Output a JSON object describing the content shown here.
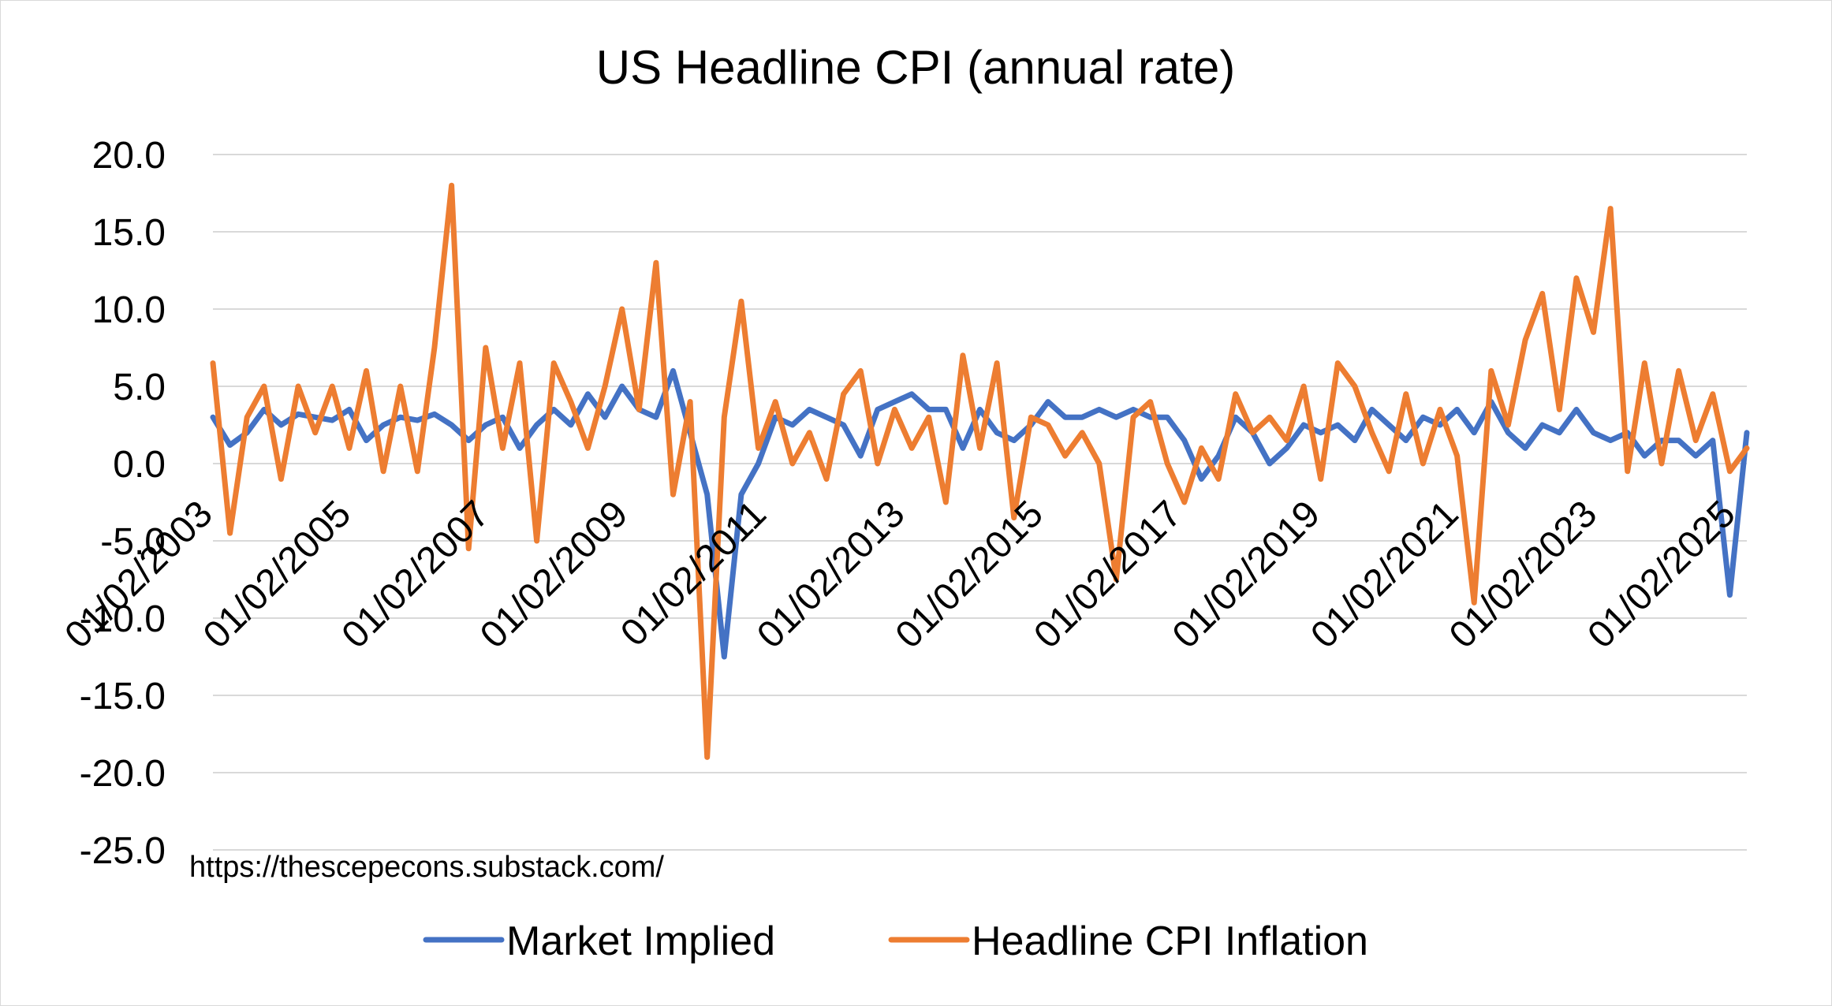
{
  "chart_data": {
    "type": "line",
    "title": "US Headline CPI (annual rate)",
    "xlabel": "",
    "ylabel": "",
    "ylim": [
      -25,
      20
    ],
    "y_ticks": [
      "20.0",
      "15.0",
      "10.0",
      "5.0",
      "0.0",
      "-5.0",
      "-10.0",
      "-15.0",
      "-20.0",
      "-25.0"
    ],
    "x_range": [
      "2003-01",
      "2025-07"
    ],
    "x_ticks": [
      "01/02/2003",
      "01/02/2005",
      "01/02/2007",
      "01/02/2009",
      "01/02/2011",
      "01/02/2013",
      "01/02/2015",
      "01/02/2017",
      "01/02/2019",
      "01/02/2021",
      "01/02/2023",
      "01/02/2025"
    ],
    "grid": true,
    "legend_position": "bottom",
    "annotation": "https://thescepecons.substack.com/",
    "series": [
      {
        "name": "Market Implied",
        "color": "#4472C4",
        "points": [
          [
            "2003-01",
            3.0
          ],
          [
            "2003-04",
            1.2
          ],
          [
            "2003-07",
            2.0
          ],
          [
            "2003-10",
            3.5
          ],
          [
            "2004-01",
            2.5
          ],
          [
            "2004-04",
            3.2
          ],
          [
            "2004-07",
            3.0
          ],
          [
            "2004-10",
            2.8
          ],
          [
            "2005-01",
            3.5
          ],
          [
            "2005-04",
            1.5
          ],
          [
            "2005-07",
            2.5
          ],
          [
            "2005-10",
            3.0
          ],
          [
            "2006-01",
            2.8
          ],
          [
            "2006-04",
            3.2
          ],
          [
            "2006-07",
            2.5
          ],
          [
            "2006-10",
            1.5
          ],
          [
            "2007-01",
            2.5
          ],
          [
            "2007-04",
            3.0
          ],
          [
            "2007-07",
            1.0
          ],
          [
            "2007-10",
            2.5
          ],
          [
            "2008-01",
            3.5
          ],
          [
            "2008-04",
            2.5
          ],
          [
            "2008-07",
            4.5
          ],
          [
            "2008-10",
            3.0
          ],
          [
            "2009-01",
            5.0
          ],
          [
            "2009-04",
            3.5
          ],
          [
            "2009-07",
            3.0
          ],
          [
            "2009-10",
            6.0
          ],
          [
            "2010-01",
            2.0
          ],
          [
            "2010-04",
            -2.0
          ],
          [
            "2010-07",
            -12.5
          ],
          [
            "2010-10",
            -2.0
          ],
          [
            "2011-01",
            0.0
          ],
          [
            "2011-04",
            3.0
          ],
          [
            "2011-07",
            2.5
          ],
          [
            "2011-10",
            3.5
          ],
          [
            "2012-01",
            3.0
          ],
          [
            "2012-04",
            2.5
          ],
          [
            "2012-07",
            0.5
          ],
          [
            "2012-10",
            3.5
          ],
          [
            "2013-01",
            4.0
          ],
          [
            "2013-04",
            4.5
          ],
          [
            "2013-07",
            3.5
          ],
          [
            "2013-10",
            3.5
          ],
          [
            "2014-01",
            1.0
          ],
          [
            "2014-04",
            3.5
          ],
          [
            "2014-07",
            2.0
          ],
          [
            "2014-10",
            1.5
          ],
          [
            "2015-01",
            2.5
          ],
          [
            "2015-04",
            4.0
          ],
          [
            "2015-07",
            3.0
          ],
          [
            "2015-10",
            3.0
          ],
          [
            "2016-01",
            3.5
          ],
          [
            "2016-04",
            3.0
          ],
          [
            "2016-07",
            3.5
          ],
          [
            "2016-10",
            3.0
          ],
          [
            "2017-01",
            3.0
          ],
          [
            "2017-04",
            1.5
          ],
          [
            "2017-07",
            -1.0
          ],
          [
            "2017-10",
            0.5
          ],
          [
            "2018-01",
            3.0
          ],
          [
            "2018-04",
            2.0
          ],
          [
            "2018-07",
            0.0
          ],
          [
            "2018-10",
            1.0
          ],
          [
            "2019-01",
            2.5
          ],
          [
            "2019-04",
            2.0
          ],
          [
            "2019-07",
            2.5
          ],
          [
            "2019-10",
            1.5
          ],
          [
            "2020-01",
            3.5
          ],
          [
            "2020-04",
            2.5
          ],
          [
            "2020-07",
            1.5
          ],
          [
            "2020-10",
            3.0
          ],
          [
            "2021-01",
            2.5
          ],
          [
            "2021-04",
            3.5
          ],
          [
            "2021-07",
            2.0
          ],
          [
            "2021-10",
            4.0
          ],
          [
            "2022-01",
            2.0
          ],
          [
            "2022-04",
            1.0
          ],
          [
            "2022-07",
            2.5
          ],
          [
            "2022-10",
            2.0
          ],
          [
            "2023-01",
            3.5
          ],
          [
            "2023-04",
            2.0
          ],
          [
            "2023-07",
            1.5
          ],
          [
            "2023-10",
            2.0
          ],
          [
            "2024-01",
            0.5
          ],
          [
            "2024-04",
            1.5
          ],
          [
            "2024-07",
            1.5
          ],
          [
            "2024-10",
            0.5
          ],
          [
            "2025-01",
            1.5
          ],
          [
            "2025-04",
            -8.5
          ],
          [
            "2025-07",
            2.0
          ]
        ]
      },
      {
        "name": "Headline CPI Inflation",
        "color": "#ED7D31",
        "points": [
          [
            "2003-01",
            6.5
          ],
          [
            "2003-04",
            -4.5
          ],
          [
            "2003-07",
            3.0
          ],
          [
            "2003-10",
            5.0
          ],
          [
            "2004-01",
            -1.0
          ],
          [
            "2004-04",
            5.0
          ],
          [
            "2004-07",
            2.0
          ],
          [
            "2004-10",
            5.0
          ],
          [
            "2005-01",
            1.0
          ],
          [
            "2005-04",
            6.0
          ],
          [
            "2005-07",
            -0.5
          ],
          [
            "2005-10",
            5.0
          ],
          [
            "2006-01",
            -0.5
          ],
          [
            "2006-04",
            7.5
          ],
          [
            "2006-07",
            18.0
          ],
          [
            "2006-10",
            -5.5
          ],
          [
            "2007-01",
            7.5
          ],
          [
            "2007-04",
            1.0
          ],
          [
            "2007-07",
            6.5
          ],
          [
            "2007-10",
            -5.0
          ],
          [
            "2008-01",
            6.5
          ],
          [
            "2008-04",
            4.0
          ],
          [
            "2008-07",
            1.0
          ],
          [
            "2008-10",
            5.0
          ],
          [
            "2009-01",
            10.0
          ],
          [
            "2009-04",
            3.5
          ],
          [
            "2009-07",
            13.0
          ],
          [
            "2009-10",
            -2.0
          ],
          [
            "2010-01",
            4.0
          ],
          [
            "2010-04",
            -19.0
          ],
          [
            "2010-07",
            3.0
          ],
          [
            "2010-10",
            10.5
          ],
          [
            "2011-01",
            1.0
          ],
          [
            "2011-04",
            4.0
          ],
          [
            "2011-07",
            0.0
          ],
          [
            "2011-10",
            2.0
          ],
          [
            "2012-01",
            -1.0
          ],
          [
            "2012-04",
            4.5
          ],
          [
            "2012-07",
            6.0
          ],
          [
            "2012-10",
            0.0
          ],
          [
            "2013-01",
            3.5
          ],
          [
            "2013-04",
            1.0
          ],
          [
            "2013-07",
            3.0
          ],
          [
            "2013-10",
            -2.5
          ],
          [
            "2014-01",
            7.0
          ],
          [
            "2014-04",
            1.0
          ],
          [
            "2014-07",
            6.5
          ],
          [
            "2014-10",
            -3.5
          ],
          [
            "2015-01",
            3.0
          ],
          [
            "2015-04",
            2.5
          ],
          [
            "2015-07",
            0.5
          ],
          [
            "2015-10",
            2.0
          ],
          [
            "2016-01",
            0.0
          ],
          [
            "2016-04",
            -7.5
          ],
          [
            "2016-07",
            3.0
          ],
          [
            "2016-10",
            4.0
          ],
          [
            "2017-01",
            0.0
          ],
          [
            "2017-04",
            -2.5
          ],
          [
            "2017-07",
            1.0
          ],
          [
            "2017-10",
            -1.0
          ],
          [
            "2018-01",
            4.5
          ],
          [
            "2018-04",
            2.0
          ],
          [
            "2018-07",
            3.0
          ],
          [
            "2018-10",
            1.5
          ],
          [
            "2019-01",
            5.0
          ],
          [
            "2019-04",
            -1.0
          ],
          [
            "2019-07",
            6.5
          ],
          [
            "2019-10",
            5.0
          ],
          [
            "2020-01",
            2.0
          ],
          [
            "2020-04",
            -0.5
          ],
          [
            "2020-07",
            4.5
          ],
          [
            "2020-10",
            0.0
          ],
          [
            "2021-01",
            3.5
          ],
          [
            "2021-04",
            0.5
          ],
          [
            "2021-07",
            -9.0
          ],
          [
            "2021-10",
            6.0
          ],
          [
            "2022-01",
            2.5
          ],
          [
            "2022-04",
            8.0
          ],
          [
            "2022-07",
            11.0
          ],
          [
            "2022-10",
            3.5
          ],
          [
            "2023-01",
            12.0
          ],
          [
            "2023-04",
            8.5
          ],
          [
            "2023-07",
            16.5
          ],
          [
            "2023-10",
            -0.5
          ],
          [
            "2024-01",
            6.5
          ],
          [
            "2024-04",
            0.0
          ],
          [
            "2024-07",
            6.0
          ],
          [
            "2024-10",
            1.5
          ],
          [
            "2025-01",
            4.5
          ],
          [
            "2025-04",
            -0.5
          ],
          [
            "2025-07",
            1.0
          ]
        ]
      }
    ]
  }
}
